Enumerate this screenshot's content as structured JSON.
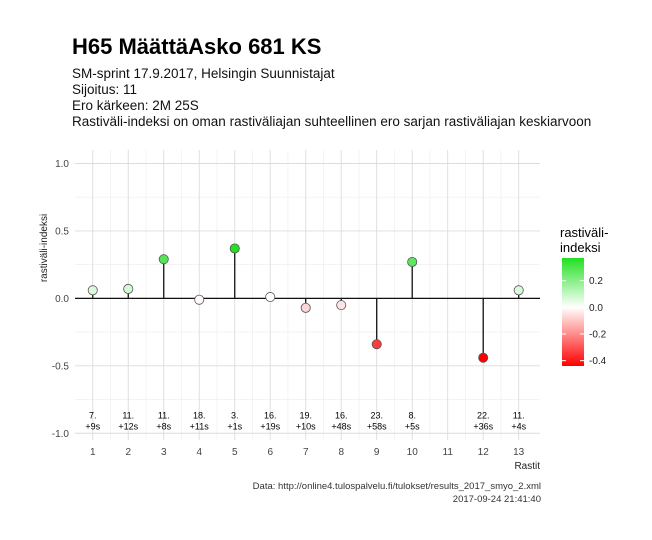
{
  "title": "H65 MäättäAsko 681 KS",
  "subtitles": [
    "SM-sprint 17.9.2017, Helsingin Suunnistajat",
    "Sijoitus: 11",
    "Ero kärkeen: 2M 25S",
    "Rastiväli-indeksi on oman rastiväliajan suhteellinen ero sarjan rastiväliajan keskiarvoon"
  ],
  "captions": [
    "Data: http://online4.tulospalvelu.fi/tulokset/results_2017_smyo_2.xml",
    "2017-09-24 21:41:40"
  ],
  "chart_data": {
    "type": "lollipop",
    "xlabel": "Rastit",
    "ylabel": "rastiväli-indeksi",
    "xlim": [
      0.5,
      13.6
    ],
    "ylim": [
      -1.05,
      1.1
    ],
    "x_ticks": [
      1,
      2,
      3,
      4,
      5,
      6,
      7,
      8,
      9,
      10,
      11,
      12,
      13
    ],
    "y_ticks": [
      -1.0,
      -0.5,
      0.0,
      0.5,
      1.0
    ],
    "y_tick_labels": [
      "-1.0",
      "-0.5",
      "0.0",
      "0.5",
      "1.0"
    ],
    "grid": true,
    "points": [
      {
        "x": 1,
        "y": 0.06,
        "rank": "7.",
        "diff": "+9s"
      },
      {
        "x": 2,
        "y": 0.07,
        "rank": "11.",
        "diff": "+12s"
      },
      {
        "x": 3,
        "y": 0.29,
        "rank": "11.",
        "diff": "+8s"
      },
      {
        "x": 4,
        "y": -0.01,
        "rank": "18.",
        "diff": "+11s"
      },
      {
        "x": 5,
        "y": 0.37,
        "rank": "3.",
        "diff": "+1s"
      },
      {
        "x": 6,
        "y": 0.01,
        "rank": "16.",
        "diff": "+19s"
      },
      {
        "x": 7,
        "y": -0.07,
        "rank": "19.",
        "diff": "+10s"
      },
      {
        "x": 8,
        "y": -0.05,
        "rank": "16.",
        "diff": "+48s"
      },
      {
        "x": 9,
        "y": -0.34,
        "rank": "23.",
        "diff": "+58s"
      },
      {
        "x": 10,
        "y": 0.27,
        "rank": "8.",
        "diff": "+5s"
      },
      {
        "x": 12,
        "y": -0.44,
        "rank": "22.",
        "diff": "+36s"
      },
      {
        "x": 13,
        "y": 0.06,
        "rank": "11.",
        "diff": "+4s"
      }
    ],
    "label_y": -0.92,
    "color_scale": {
      "title": "rastiväli-indeksi",
      "title_lines": [
        "rastiväli-",
        "indeksi"
      ],
      "min": -0.44,
      "max": 0.37,
      "ticks": [
        0.2,
        0.0,
        -0.2,
        -0.4
      ],
      "tick_labels": [
        "0.2",
        "0.0",
        "-0.2",
        "-0.4"
      ],
      "colors": {
        "negative": "#ff0000",
        "zero": "#ffffff",
        "positive": "#22e022"
      }
    }
  }
}
